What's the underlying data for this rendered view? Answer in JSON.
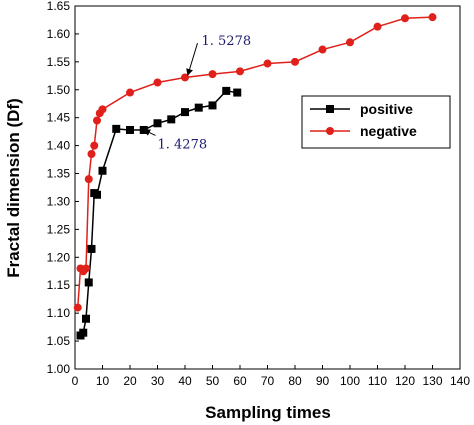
{
  "chart_data": {
    "type": "line",
    "title": "",
    "xlabel": "Sampling times",
    "ylabel": "Fractal dimension (Df)",
    "xlim": [
      0,
      140
    ],
    "ylim": [
      1.0,
      1.65
    ],
    "xticks": [
      "0",
      "10",
      "20",
      "30",
      "40",
      "50",
      "60",
      "70",
      "80",
      "90",
      "100",
      "110",
      "120",
      "130",
      "140"
    ],
    "yticks": [
      "1.00",
      "1.05",
      "1.10",
      "1.15",
      "1.20",
      "1.25",
      "1.30",
      "1.35",
      "1.40",
      "1.45",
      "1.50",
      "1.55",
      "1.60",
      "1.65"
    ],
    "grid": false,
    "legend_position": "right",
    "series": [
      {
        "name": "positive",
        "color": "#000000",
        "marker": "square",
        "x": [
          2,
          3,
          4,
          5,
          6,
          7,
          8,
          10,
          15,
          20,
          25,
          30,
          35,
          40,
          45,
          50,
          55,
          59
        ],
        "y": [
          1.06,
          1.065,
          1.09,
          1.155,
          1.215,
          1.315,
          1.312,
          1.355,
          1.43,
          1.428,
          1.428,
          1.44,
          1.447,
          1.46,
          1.468,
          1.472,
          1.498,
          1.495
        ]
      },
      {
        "name": "negative",
        "color": "#e0201a",
        "marker": "circle",
        "x": [
          1,
          2,
          3,
          4,
          5,
          6,
          7,
          8,
          9,
          10,
          20,
          30,
          40,
          50,
          60,
          70,
          80,
          90,
          100,
          110,
          120,
          130
        ],
        "y": [
          1.11,
          1.18,
          1.175,
          1.18,
          1.34,
          1.385,
          1.4,
          1.445,
          1.458,
          1.465,
          1.495,
          1.513,
          1.522,
          1.528,
          1.533,
          1.547,
          1.55,
          1.572,
          1.585,
          1.613,
          1.628,
          1.63
        ]
      }
    ],
    "annotations": [
      {
        "text": "1. 5278",
        "x": 46,
        "y": 1.58,
        "arrow_to": [
          41,
          1.526
        ]
      },
      {
        "text": "1. 4278",
        "x": 30,
        "y": 1.395,
        "arrow_to": [
          25,
          1.428
        ]
      }
    ]
  }
}
